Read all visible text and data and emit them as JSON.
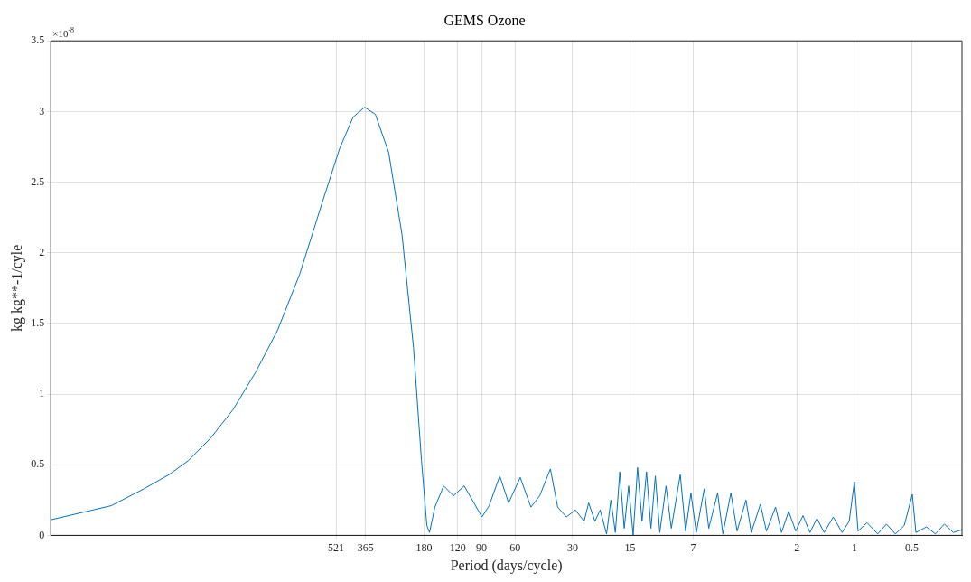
{
  "chart_data": {
    "type": "line",
    "title": "GEMS Ozone",
    "xlabel": "Period (days/cycle)",
    "ylabel": "kg kg**-1/cyle",
    "annotations": [
      "×10$^{-8}$"
    ],
    "log": "x",
    "grid": true,
    "marker": "none",
    "line_style": "solid",
    "legend": false,
    "xlim": [
      16290,
      0.273
    ],
    "xticks": [
      521,
      365,
      180,
      120,
      90,
      60,
      30,
      15,
      7,
      2,
      1,
      0.5
    ],
    "ylim": [
      0,
      3.5
    ],
    "yticks": [
      0,
      0.5,
      1,
      1.5,
      2,
      2.5,
      3,
      3.5
    ],
    "series": [
      {
        "color": "#0072bd",
        "x": [
          16290,
          7852,
          5282,
          3909,
          3088,
          2361,
          1806,
          1381,
          1056,
          807,
          617,
          498,
          424,
          369,
          324,
          276,
          235,
          204.5,
          185.7,
          174.1,
          168.6,
          158,
          142,
          126.2,
          110.9,
          99.6,
          89.5,
          82.1,
          72.2,
          64.9,
          56.4,
          49.6,
          44.6,
          39.2,
          35.9,
          32.3,
          29,
          26.1,
          24.7,
          22.9,
          21.5,
          19.9,
          18.89,
          17.9,
          16.96,
          16.08,
          15.24,
          14.44,
          13.69,
          12.97,
          12.29,
          11.65,
          11.05,
          10.47,
          9.71,
          9.11,
          8.18,
          7.67,
          7.19,
          6.74,
          6.12,
          5.8,
          5.21,
          4.89,
          4.44,
          4.12,
          3.7,
          3.47,
          3.11,
          2.89,
          2.59,
          2.41,
          2.21,
          2.03,
          1.86,
          1.71,
          1.57,
          1.44,
          1.29,
          1.16,
          1.065,
          1.0,
          0.957,
          0.859,
          0.755,
          0.679,
          0.61,
          0.548,
          0.497,
          0.476,
          0.419,
          0.376,
          0.338,
          0.303,
          0.273
        ],
        "values": [
          0.11,
          0.21,
          0.33,
          0.43,
          0.53,
          0.69,
          0.89,
          1.15,
          1.45,
          1.85,
          2.35,
          2.74,
          2.96,
          3.03,
          2.98,
          2.71,
          2.13,
          1.33,
          0.53,
          0.07,
          0.02,
          0.2,
          0.35,
          0.28,
          0.35,
          0.24,
          0.13,
          0.21,
          0.42,
          0.23,
          0.41,
          0.2,
          0.28,
          0.47,
          0.2,
          0.13,
          0.18,
          0.1,
          0.23,
          0.1,
          0.18,
          0.01,
          0.25,
          0.02,
          0.45,
          0.05,
          0.35,
          0.0,
          0.48,
          0.1,
          0.45,
          0.05,
          0.42,
          0.02,
          0.35,
          0.05,
          0.43,
          0.03,
          0.3,
          0.02,
          0.33,
          0.05,
          0.3,
          0.01,
          0.3,
          0.03,
          0.25,
          0.02,
          0.22,
          0.03,
          0.2,
          0.02,
          0.17,
          0.03,
          0.14,
          0.02,
          0.12,
          0.02,
          0.13,
          0.02,
          0.1,
          0.38,
          0.03,
          0.09,
          0.01,
          0.08,
          0.01,
          0.07,
          0.29,
          0.02,
          0.06,
          0.01,
          0.08,
          0.02,
          0.04
        ]
      }
    ]
  }
}
